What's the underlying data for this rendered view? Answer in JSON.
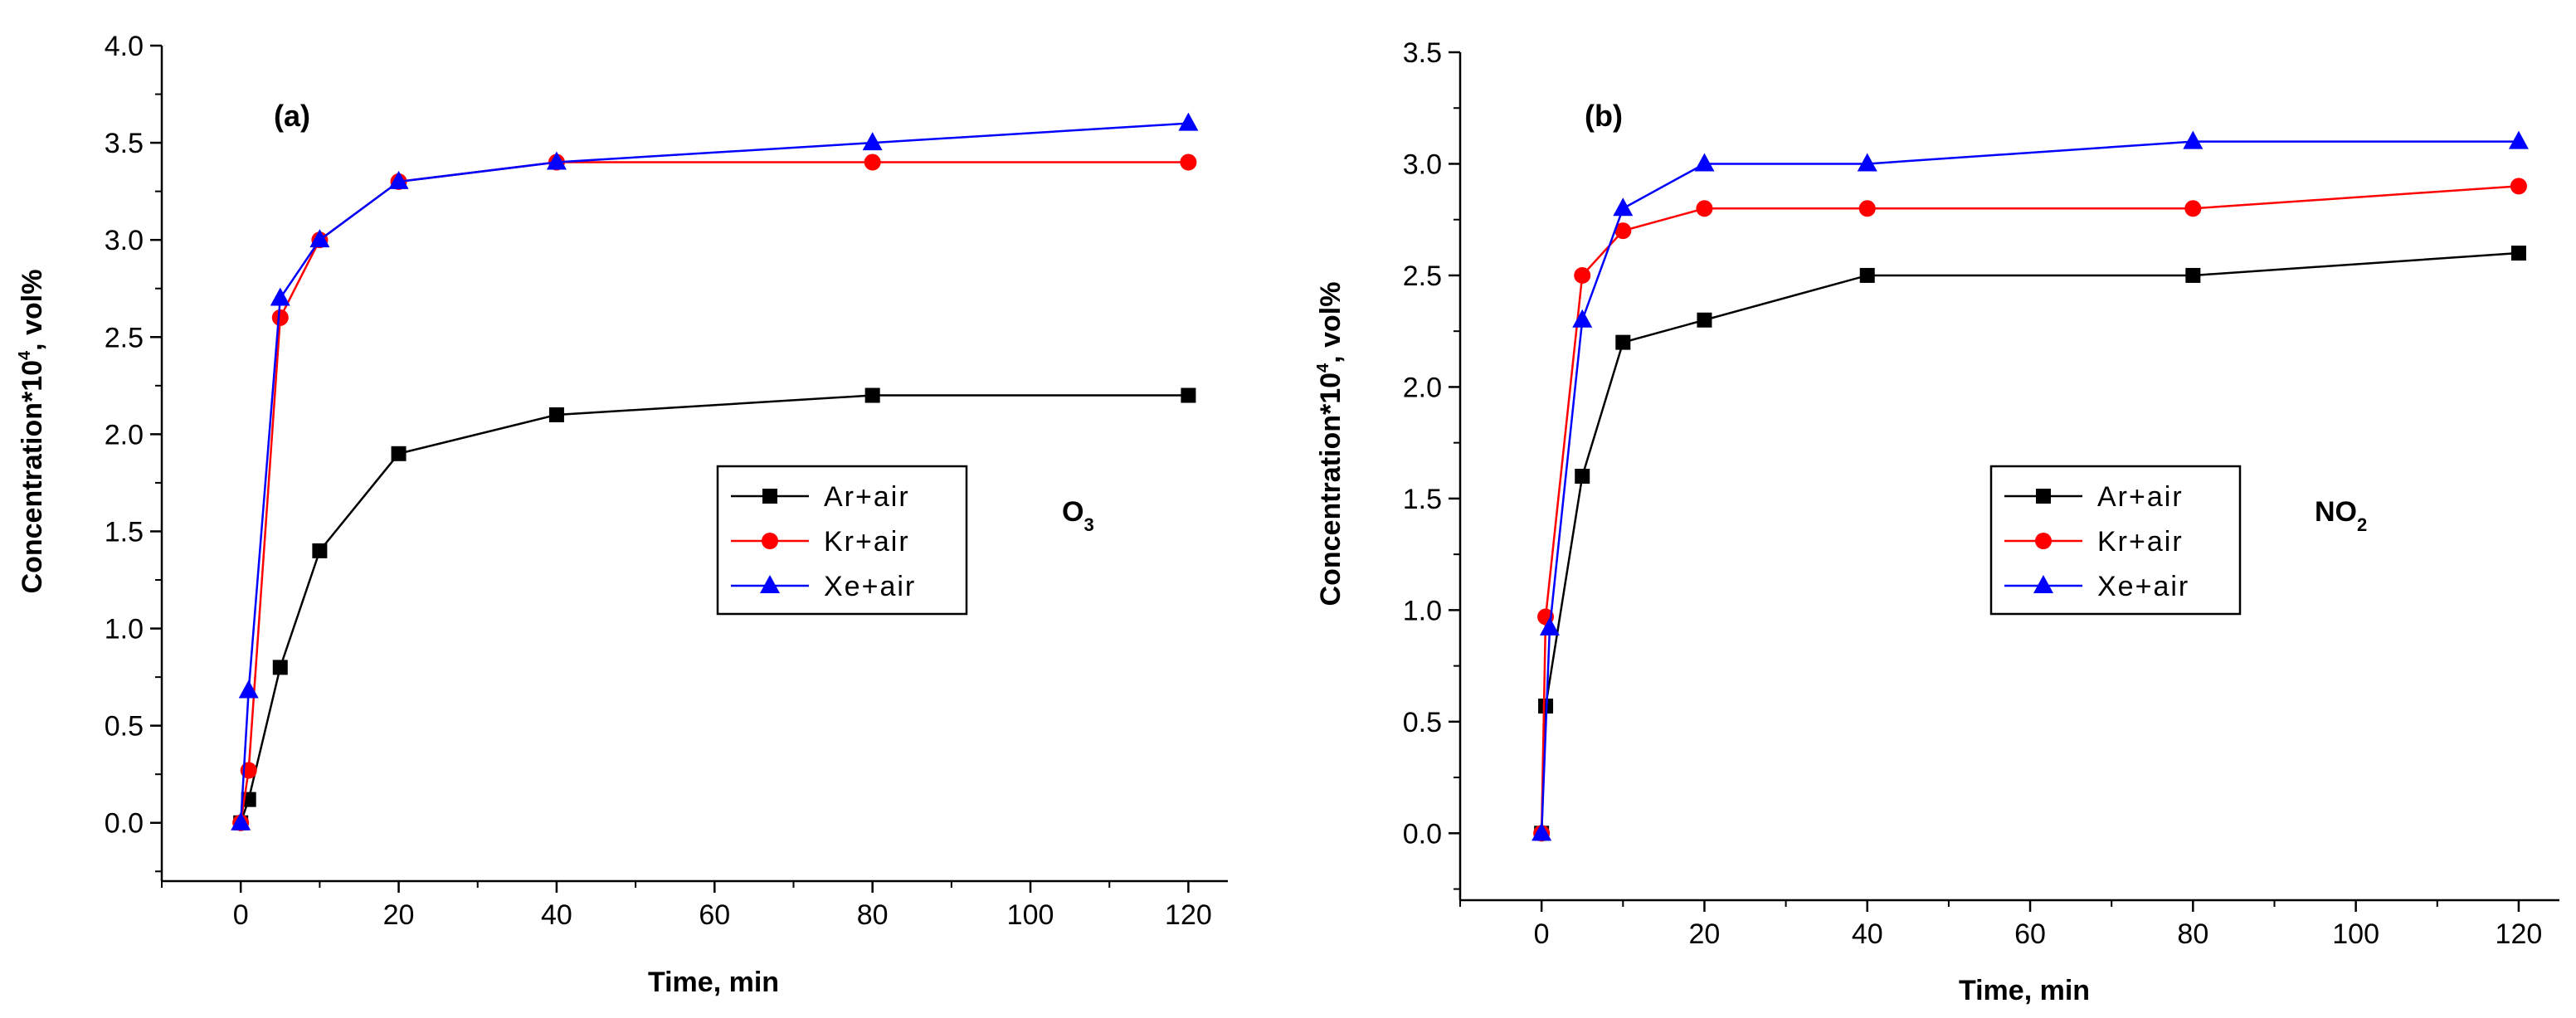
{
  "chart_data": [
    {
      "type": "line",
      "panel_label": "(a)",
      "species": "O",
      "species_sub": "3",
      "xlabel": "Time, min",
      "ylabel_pre": "Concentration*10",
      "ylabel_sup": "4",
      "ylabel_post": ", vol%",
      "xlim": [
        -10,
        125
      ],
      "ylim": [
        -0.3,
        4.0
      ],
      "xticks": [
        0,
        20,
        40,
        60,
        80,
        100,
        120
      ],
      "yticks": [
        "0.0",
        "0.5",
        "1.0",
        "1.5",
        "2.0",
        "2.5",
        "3.0",
        "3.5",
        "4.0"
      ],
      "legend_position": "center-right",
      "series": [
        {
          "name": "Ar+air",
          "color": "#000000",
          "marker": "square",
          "x": [
            0,
            1,
            5,
            10,
            20,
            40,
            80,
            120
          ],
          "y": [
            0.0,
            0.12,
            0.8,
            1.4,
            1.9,
            2.1,
            2.2,
            2.2
          ]
        },
        {
          "name": "Kr+air",
          "color": "#ff0000",
          "marker": "circle",
          "x": [
            0,
            1,
            5,
            10,
            20,
            40,
            80,
            120
          ],
          "y": [
            0.0,
            0.27,
            2.6,
            3.0,
            3.3,
            3.4,
            3.4,
            3.4
          ]
        },
        {
          "name": "Xe+air",
          "color": "#0000ff",
          "marker": "triangle",
          "x": [
            0,
            1,
            5,
            10,
            20,
            40,
            80,
            120
          ],
          "y": [
            0.0,
            0.68,
            2.7,
            3.0,
            3.3,
            3.4,
            3.5,
            3.6
          ]
        }
      ]
    },
    {
      "type": "line",
      "panel_label": "(b)",
      "species": "NO",
      "species_sub": "2",
      "xlabel": "Time, min",
      "ylabel_pre": "Concentration*10",
      "ylabel_sup": "4",
      "ylabel_post": ", vol%",
      "xlim": [
        -10,
        125
      ],
      "ylim": [
        -0.3,
        3.5
      ],
      "xticks": [
        0,
        20,
        40,
        60,
        80,
        100,
        120
      ],
      "yticks": [
        "0.0",
        "0.5",
        "1.0",
        "1.5",
        "2.0",
        "2.5",
        "3.0",
        "3.5"
      ],
      "legend_position": "center-right",
      "series": [
        {
          "name": "Ar+air",
          "color": "#000000",
          "marker": "square",
          "x": [
            0,
            0.5,
            5,
            10,
            20,
            40,
            80,
            120
          ],
          "y": [
            0.0,
            0.57,
            1.6,
            2.2,
            2.3,
            2.5,
            2.5,
            2.6
          ]
        },
        {
          "name": "Kr+air",
          "color": "#ff0000",
          "marker": "circle",
          "x": [
            0,
            0.5,
            5,
            10,
            20,
            40,
            80,
            120
          ],
          "y": [
            0.0,
            0.97,
            2.5,
            2.7,
            2.8,
            2.8,
            2.8,
            2.9
          ]
        },
        {
          "name": "Xe+air",
          "color": "#0000ff",
          "marker": "triangle",
          "x": [
            0,
            1,
            5,
            10,
            20,
            40,
            80,
            120
          ],
          "y": [
            0.0,
            0.92,
            2.3,
            2.8,
            3.0,
            3.0,
            3.1,
            3.1
          ]
        }
      ]
    }
  ]
}
